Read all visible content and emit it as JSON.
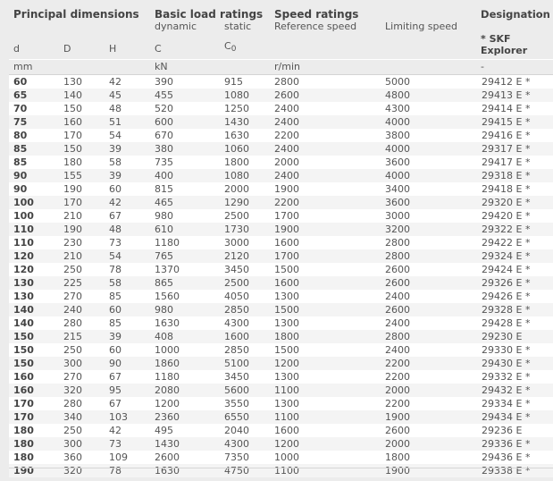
{
  "header": {
    "groups": {
      "principal_dimensions": "Principal dimensions",
      "basic_load_ratings": "Basic load ratings",
      "speed_ratings": "Speed ratings",
      "designation": "Designation"
    },
    "sub": {
      "dynamic": "dynamic",
      "static": "static",
      "reference_speed": "Reference speed",
      "limiting_speed": "Limiting speed"
    },
    "symbols": {
      "d": "d",
      "D": "D",
      "H": "H",
      "C": "C",
      "C0_base": "C",
      "C0_sub": "0",
      "skf_explorer": "* SKF Explorer"
    },
    "units": {
      "mm": "mm",
      "kN": "kN",
      "rpm": "r/min",
      "dash": "-"
    }
  },
  "rows": [
    {
      "d": "60",
      "D": "130",
      "H": "42",
      "C": "390",
      "C0": "915",
      "ref": "2800",
      "lim": "5000",
      "des": "29412 E *"
    },
    {
      "d": "65",
      "D": "140",
      "H": "45",
      "C": "455",
      "C0": "1080",
      "ref": "2600",
      "lim": "4800",
      "des": "29413 E *"
    },
    {
      "d": "70",
      "D": "150",
      "H": "48",
      "C": "520",
      "C0": "1250",
      "ref": "2400",
      "lim": "4300",
      "des": "29414 E *"
    },
    {
      "d": "75",
      "D": "160",
      "H": "51",
      "C": "600",
      "C0": "1430",
      "ref": "2400",
      "lim": "4000",
      "des": "29415 E *"
    },
    {
      "d": "80",
      "D": "170",
      "H": "54",
      "C": "670",
      "C0": "1630",
      "ref": "2200",
      "lim": "3800",
      "des": "29416 E *"
    },
    {
      "d": "85",
      "D": "150",
      "H": "39",
      "C": "380",
      "C0": "1060",
      "ref": "2400",
      "lim": "4000",
      "des": "29317 E *"
    },
    {
      "d": "85",
      "D": "180",
      "H": "58",
      "C": "735",
      "C0": "1800",
      "ref": "2000",
      "lim": "3600",
      "des": "29417 E *"
    },
    {
      "d": "90",
      "D": "155",
      "H": "39",
      "C": "400",
      "C0": "1080",
      "ref": "2400",
      "lim": "4000",
      "des": "29318 E *"
    },
    {
      "d": "90",
      "D": "190",
      "H": "60",
      "C": "815",
      "C0": "2000",
      "ref": "1900",
      "lim": "3400",
      "des": "29418 E *"
    },
    {
      "d": "100",
      "D": "170",
      "H": "42",
      "C": "465",
      "C0": "1290",
      "ref": "2200",
      "lim": "3600",
      "des": "29320 E *"
    },
    {
      "d": "100",
      "D": "210",
      "H": "67",
      "C": "980",
      "C0": "2500",
      "ref": "1700",
      "lim": "3000",
      "des": "29420 E *"
    },
    {
      "d": "110",
      "D": "190",
      "H": "48",
      "C": "610",
      "C0": "1730",
      "ref": "1900",
      "lim": "3200",
      "des": "29322 E *"
    },
    {
      "d": "110",
      "D": "230",
      "H": "73",
      "C": "1180",
      "C0": "3000",
      "ref": "1600",
      "lim": "2800",
      "des": "29422 E *"
    },
    {
      "d": "120",
      "D": "210",
      "H": "54",
      "C": "765",
      "C0": "2120",
      "ref": "1700",
      "lim": "2800",
      "des": "29324 E *"
    },
    {
      "d": "120",
      "D": "250",
      "H": "78",
      "C": "1370",
      "C0": "3450",
      "ref": "1500",
      "lim": "2600",
      "des": "29424 E *"
    },
    {
      "d": "130",
      "D": "225",
      "H": "58",
      "C": "865",
      "C0": "2500",
      "ref": "1600",
      "lim": "2600",
      "des": "29326 E *"
    },
    {
      "d": "130",
      "D": "270",
      "H": "85",
      "C": "1560",
      "C0": "4050",
      "ref": "1300",
      "lim": "2400",
      "des": "29426 E *"
    },
    {
      "d": "140",
      "D": "240",
      "H": "60",
      "C": "980",
      "C0": "2850",
      "ref": "1500",
      "lim": "2600",
      "des": "29328 E *"
    },
    {
      "d": "140",
      "D": "280",
      "H": "85",
      "C": "1630",
      "C0": "4300",
      "ref": "1300",
      "lim": "2400",
      "des": "29428 E *"
    },
    {
      "d": "150",
      "D": "215",
      "H": "39",
      "C": "408",
      "C0": "1600",
      "ref": "1800",
      "lim": "2800",
      "des": "29230 E"
    },
    {
      "d": "150",
      "D": "250",
      "H": "60",
      "C": "1000",
      "C0": "2850",
      "ref": "1500",
      "lim": "2400",
      "des": "29330 E *"
    },
    {
      "d": "150",
      "D": "300",
      "H": "90",
      "C": "1860",
      "C0": "5100",
      "ref": "1200",
      "lim": "2200",
      "des": "29430 E *"
    },
    {
      "d": "160",
      "D": "270",
      "H": "67",
      "C": "1180",
      "C0": "3450",
      "ref": "1300",
      "lim": "2200",
      "des": "29332 E *"
    },
    {
      "d": "160",
      "D": "320",
      "H": "95",
      "C": "2080",
      "C0": "5600",
      "ref": "1100",
      "lim": "2000",
      "des": "29432 E *"
    },
    {
      "d": "170",
      "D": "280",
      "H": "67",
      "C": "1200",
      "C0": "3550",
      "ref": "1300",
      "lim": "2200",
      "des": "29334 E *"
    },
    {
      "d": "170",
      "D": "340",
      "H": "103",
      "C": "2360",
      "C0": "6550",
      "ref": "1100",
      "lim": "1900",
      "des": "29434 E *"
    },
    {
      "d": "180",
      "D": "250",
      "H": "42",
      "C": "495",
      "C0": "2040",
      "ref": "1600",
      "lim": "2600",
      "des": "29236 E"
    },
    {
      "d": "180",
      "D": "300",
      "H": "73",
      "C": "1430",
      "C0": "4300",
      "ref": "1200",
      "lim": "2000",
      "des": "29336 E *"
    },
    {
      "d": "180",
      "D": "360",
      "H": "109",
      "C": "2600",
      "C0": "7350",
      "ref": "1000",
      "lim": "1800",
      "des": "29436 E *"
    },
    {
      "d": "190",
      "D": "320",
      "H": "78",
      "C": "1630",
      "C0": "4750",
      "ref": "1100",
      "lim": "1900",
      "des": "29338 E *"
    }
  ]
}
